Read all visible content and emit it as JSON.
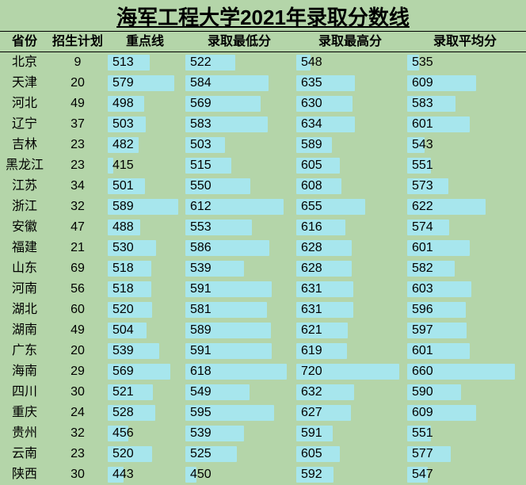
{
  "table": {
    "title": "海军工程大学2021年录取分数线",
    "title_fontsize": 26,
    "cell_fontsize": 16,
    "background_color": "#b4d5a9",
    "bar_color": "#a7e6ed",
    "text_color": "#000000",
    "border_color": "#000000",
    "columns": [
      {
        "key": "province",
        "label": "省份",
        "type": "text"
      },
      {
        "key": "plan",
        "label": "招生计划",
        "type": "text"
      },
      {
        "key": "keyline",
        "label": "重点线",
        "type": "bar",
        "min": 400,
        "max": 600
      },
      {
        "key": "minScore",
        "label": "录取最低分",
        "type": "bar",
        "min": 430,
        "max": 630
      },
      {
        "key": "maxScore",
        "label": "录取最高分",
        "type": "bar",
        "min": 520,
        "max": 730
      },
      {
        "key": "avgScore",
        "label": "录取平均分",
        "type": "bar",
        "min": 520,
        "max": 670
      }
    ],
    "rows": [
      {
        "province": "北京",
        "plan": 9,
        "keyline": 513,
        "minScore": 522,
        "maxScore": 548,
        "avgScore": 535
      },
      {
        "province": "天津",
        "plan": 20,
        "keyline": 579,
        "minScore": 584,
        "maxScore": 635,
        "avgScore": 609
      },
      {
        "province": "河北",
        "plan": 49,
        "keyline": 498,
        "minScore": 569,
        "maxScore": 630,
        "avgScore": 583
      },
      {
        "province": "辽宁",
        "plan": 37,
        "keyline": 503,
        "minScore": 583,
        "maxScore": 634,
        "avgScore": 601
      },
      {
        "province": "吉林",
        "plan": 23,
        "keyline": 482,
        "minScore": 503,
        "maxScore": 589,
        "avgScore": 543
      },
      {
        "province": "黑龙江",
        "plan": 23,
        "keyline": 415,
        "minScore": 515,
        "maxScore": 605,
        "avgScore": 551
      },
      {
        "province": "江苏",
        "plan": 34,
        "keyline": 501,
        "minScore": 550,
        "maxScore": 608,
        "avgScore": 573
      },
      {
        "province": "浙江",
        "plan": 32,
        "keyline": 589,
        "minScore": 612,
        "maxScore": 655,
        "avgScore": 622
      },
      {
        "province": "安徽",
        "plan": 47,
        "keyline": 488,
        "minScore": 553,
        "maxScore": 616,
        "avgScore": 574
      },
      {
        "province": "福建",
        "plan": 21,
        "keyline": 530,
        "minScore": 586,
        "maxScore": 628,
        "avgScore": 601
      },
      {
        "province": "山东",
        "plan": 69,
        "keyline": 518,
        "minScore": 539,
        "maxScore": 628,
        "avgScore": 582
      },
      {
        "province": "河南",
        "plan": 56,
        "keyline": 518,
        "minScore": 591,
        "maxScore": 631,
        "avgScore": 603
      },
      {
        "province": "湖北",
        "plan": 60,
        "keyline": 520,
        "minScore": 581,
        "maxScore": 631,
        "avgScore": 596
      },
      {
        "province": "湖南",
        "plan": 49,
        "keyline": 504,
        "minScore": 589,
        "maxScore": 621,
        "avgScore": 597
      },
      {
        "province": "广东",
        "plan": 20,
        "keyline": 539,
        "minScore": 591,
        "maxScore": 619,
        "avgScore": 601
      },
      {
        "province": "海南",
        "plan": 29,
        "keyline": 569,
        "minScore": 618,
        "maxScore": 720,
        "avgScore": 660
      },
      {
        "province": "四川",
        "plan": 30,
        "keyline": 521,
        "minScore": 549,
        "maxScore": 632,
        "avgScore": 590
      },
      {
        "province": "重庆",
        "plan": 24,
        "keyline": 528,
        "minScore": 595,
        "maxScore": 627,
        "avgScore": 609
      },
      {
        "province": "贵州",
        "plan": 32,
        "keyline": 456,
        "minScore": 539,
        "maxScore": 591,
        "avgScore": 551
      },
      {
        "province": "云南",
        "plan": 23,
        "keyline": 520,
        "minScore": 525,
        "maxScore": 605,
        "avgScore": 577
      },
      {
        "province": "陕西",
        "plan": 30,
        "keyline": 443,
        "minScore": 450,
        "maxScore": 592,
        "avgScore": 547
      }
    ]
  }
}
